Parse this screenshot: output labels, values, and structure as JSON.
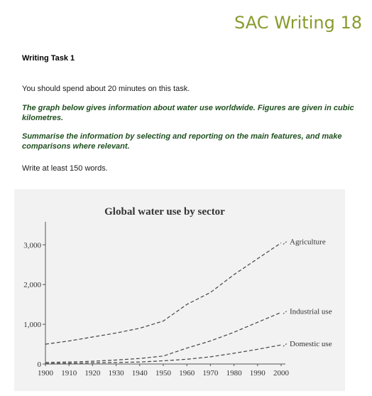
{
  "header": {
    "title": "SAC Writing 18"
  },
  "task": {
    "label": "Writing Task 1",
    "instruction": "You should spend about 20 minutes on this task.",
    "description": "The graph below gives information about water use worldwide. Figures are given in cubic kilometres.",
    "summary_prompt": "Summarise the information by selecting and reporting on the main features, and make comparisons where relevant.",
    "word_count": "Write at least 150 words."
  },
  "chart_data": {
    "type": "line",
    "title": "Global water use by sector",
    "xlabel": "",
    "ylabel": "",
    "x": [
      1900,
      1910,
      1920,
      1930,
      1940,
      1950,
      1960,
      1970,
      1980,
      1990,
      2000
    ],
    "xticks": [
      "1900",
      "1910",
      "1920",
      "1930",
      "1940",
      "1950",
      "1960",
      "1970",
      "1980",
      "1990",
      "2000"
    ],
    "yticks": [
      {
        "value": 0,
        "label": "0"
      },
      {
        "value": 1000,
        "label": "1,000"
      },
      {
        "value": 2000,
        "label": "2,000"
      },
      {
        "value": 3000,
        "label": "3,000"
      }
    ],
    "xlim": [
      1900,
      2000
    ],
    "ylim": [
      0,
      3400
    ],
    "grid": false,
    "series": [
      {
        "name": "Agriculture",
        "values": [
          500,
          580,
          680,
          780,
          900,
          1080,
          1500,
          1800,
          2250,
          2650,
          3050
        ]
      },
      {
        "name": "Industrial use",
        "values": [
          40,
          50,
          70,
          100,
          140,
          200,
          400,
          580,
          800,
          1050,
          1300
        ]
      },
      {
        "name": "Domestic use",
        "values": [
          10,
          20,
          30,
          40,
          50,
          80,
          120,
          180,
          270,
          370,
          480
        ]
      }
    ],
    "colors": {
      "line": "#444444",
      "axis": "#555555",
      "background": "#f2f2f2"
    }
  }
}
